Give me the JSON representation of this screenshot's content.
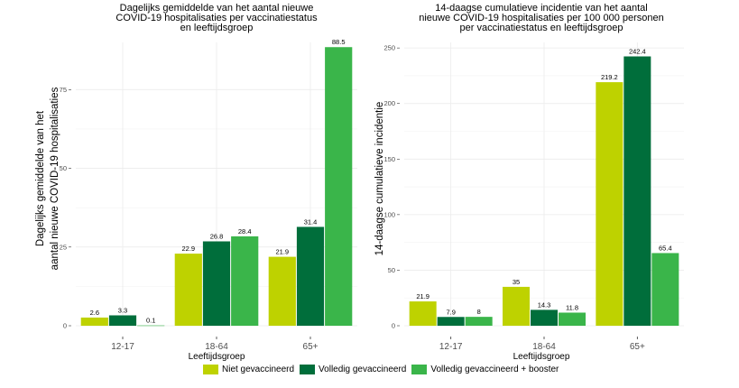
{
  "colors": {
    "niet": "#bed200",
    "volledig": "#006e3b",
    "booster": "#3ab54a",
    "grid": "#ebebeb",
    "axis_text": "#4d4d4d"
  },
  "legend": {
    "items": [
      {
        "label": "Niet gevaccineerd",
        "color": "#bed200"
      },
      {
        "label": "Volledig gevaccineerd",
        "color": "#006e3b"
      },
      {
        "label": "Volledig gevaccineerd + booster",
        "color": "#3ab54a"
      }
    ]
  },
  "chart_data": [
    {
      "type": "bar",
      "title_lines": [
        "Dagelijks gemiddelde van het aantal nieuwe",
        "COVID-19 hospitalisaties per vaccinatiestatus",
        "en leeftijdsgroep"
      ],
      "ylabel_lines": [
        "Dagelijks gemiddelde van het",
        "aantal nieuwe COVID-19 hospitalisaties"
      ],
      "xlabel": "Leeftijdsgroep",
      "categories": [
        "12-17",
        "18-64",
        "65+"
      ],
      "ylim": [
        0,
        90
      ],
      "yticks": [
        0,
        25,
        50,
        75
      ],
      "ytick_labels": [
        "0",
        "25",
        "50",
        "75"
      ],
      "grid": true,
      "series": [
        {
          "name": "Niet gevaccineerd",
          "values": [
            2.6,
            22.9,
            21.9
          ],
          "labels": [
            "2.6",
            "22.9",
            "21.9"
          ]
        },
        {
          "name": "Volledig gevaccineerd",
          "values": [
            3.3,
            26.8,
            31.4
          ],
          "labels": [
            "3.3",
            "26.8",
            "31.4"
          ]
        },
        {
          "name": "Volledig gevaccineerd + booster",
          "values": [
            0.1,
            28.4,
            88.5
          ],
          "labels": [
            "0.1",
            "28.4",
            "88.5"
          ]
        }
      ]
    },
    {
      "type": "bar",
      "title_lines": [
        "14-daagse cumulatieve incidentie van het aantal",
        "nieuwe COVID-19 hospitalisaties per 100 000 personen",
        "per vaccinatiestatus en leeftijdsgroep"
      ],
      "ylabel_lines": [
        "14-daagse cumulatieve incidentie"
      ],
      "xlabel": "Leeftijdsgroep",
      "categories": [
        "12-17",
        "18-64",
        "65+"
      ],
      "ylim": [
        0,
        255
      ],
      "yticks": [
        0,
        50,
        100,
        150,
        200,
        250
      ],
      "ytick_labels": [
        "0",
        "50",
        "100",
        "150",
        "200",
        "250"
      ],
      "grid": true,
      "series": [
        {
          "name": "Niet gevaccineerd",
          "values": [
            21.9,
            35,
            219.2
          ],
          "labels": [
            "21.9",
            "35",
            "219.2"
          ]
        },
        {
          "name": "Volledig gevaccineerd",
          "values": [
            7.9,
            14.3,
            242.4
          ],
          "labels": [
            "7.9",
            "14.3",
            "242.4"
          ]
        },
        {
          "name": "Volledig gevaccineerd + booster",
          "values": [
            8,
            11.8,
            65.4
          ],
          "labels": [
            "8",
            "11.8",
            "65.4"
          ]
        }
      ]
    }
  ]
}
